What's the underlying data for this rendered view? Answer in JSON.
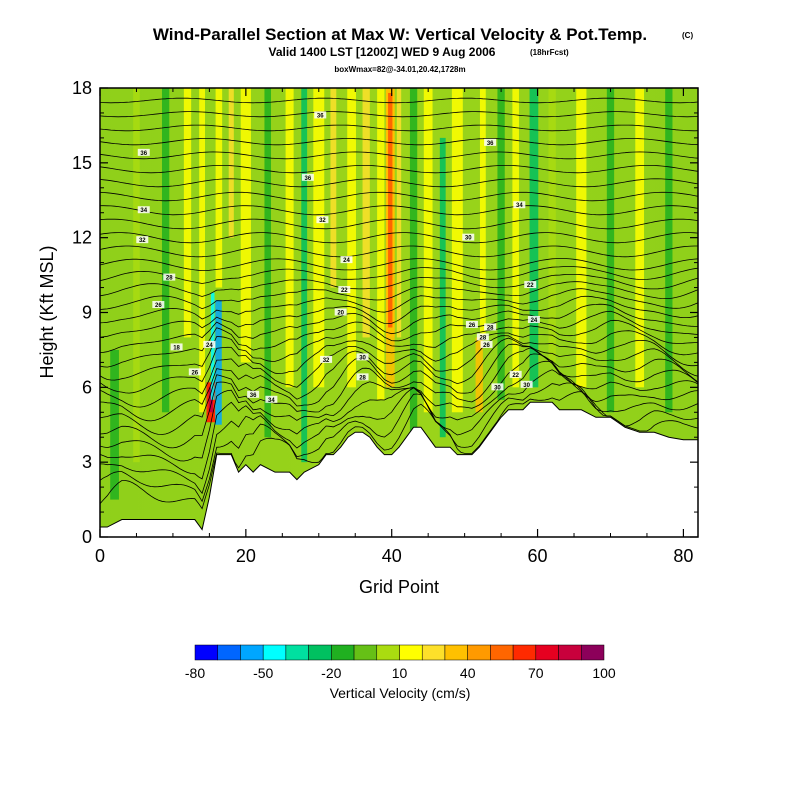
{
  "header": {
    "title": "Wind-Parallel Section at Max W: Vertical Velocity & Pot.Temp.",
    "title_mark": "(C)",
    "subtitle": "Valid 1400 LST [1200Z] WED 9 Aug 2006",
    "subtitle_note": "(18hrFcst)",
    "box_info": "boxWmax=82@-34.01,20.42,1728m"
  },
  "chart_data": {
    "type": "heatmap",
    "xlabel": "Grid Point",
    "ylabel": "Height (Kft MSL)",
    "xlim": [
      0,
      82
    ],
    "ylim": [
      0,
      18
    ],
    "x_ticks": [
      "0",
      "20",
      "40",
      "60",
      "80"
    ],
    "x_tick_values": [
      0,
      20,
      40,
      60,
      80
    ],
    "y_ticks": [
      "0",
      "3",
      "6",
      "9",
      "12",
      "15",
      "18"
    ],
    "y_tick_values": [
      0,
      3,
      6,
      9,
      12,
      15,
      18
    ],
    "terrain": {
      "x": [
        0,
        1,
        3,
        13,
        14,
        15,
        16,
        17,
        18,
        19,
        20,
        21,
        22,
        24,
        26,
        27,
        28,
        30,
        31,
        32,
        33,
        34,
        35,
        36,
        37,
        38,
        39,
        40,
        41,
        42,
        43,
        44,
        45,
        46,
        48,
        49,
        50,
        51,
        52,
        53,
        54,
        55,
        56,
        57,
        58,
        59,
        60,
        62,
        63,
        64,
        66,
        68,
        70,
        71,
        72,
        74,
        76,
        78,
        80,
        82
      ],
      "height_kft": [
        0.4,
        0.4,
        0.7,
        0.7,
        0.3,
        1.6,
        3.3,
        3.3,
        3.3,
        2.6,
        2.9,
        2.6,
        2.9,
        2.6,
        2.6,
        2.3,
        2.6,
        2.9,
        3.3,
        3.3,
        3.6,
        4.0,
        4.2,
        4.2,
        4.0,
        3.6,
        3.3,
        3.3,
        3.6,
        4.0,
        4.4,
        4.4,
        4.0,
        3.6,
        3.6,
        3.3,
        3.3,
        3.3,
        3.6,
        4.0,
        4.4,
        4.8,
        5.1,
        5.1,
        5.1,
        5.4,
        5.4,
        5.4,
        5.1,
        5.1,
        5.1,
        4.8,
        4.8,
        4.6,
        4.4,
        4.2,
        4.2,
        4.0,
        3.9,
        3.9
      ]
    },
    "updraft_cores": [
      {
        "x": 15.2,
        "y_bottom": 4.6,
        "y_top": 6.2,
        "max_w": 82
      },
      {
        "x": 39.8,
        "y_bottom": 8.0,
        "y_top": 18.0,
        "max_w": 50
      }
    ],
    "contour_labels": [
      "30",
      "30",
      "30",
      "30",
      "30",
      "30",
      "30",
      "30",
      "30",
      "30",
      "30",
      "30",
      "30",
      "30",
      "30",
      "30",
      "30",
      "30",
      "30",
      "30"
    ],
    "contour_label_text": [
      "36",
      "36",
      "36",
      "34",
      "32",
      "36",
      "34",
      "32",
      "30",
      "28",
      "26",
      "24",
      "22",
      "20",
      "18",
      "36",
      "34",
      "32",
      "30",
      "28",
      "26",
      "24",
      "22",
      "28",
      "26",
      "24",
      "22",
      "30",
      "30",
      "28",
      "26"
    ],
    "colorbar": {
      "title": "Vertical Velocity (cm/s)",
      "labels": [
        "-80",
        "-50",
        "-20",
        "10",
        "40",
        "70",
        "100"
      ],
      "colors": [
        "#0000ff",
        "#0066ff",
        "#00a6ff",
        "#00ffff",
        "#00e0a0",
        "#00c060",
        "#20b020",
        "#66c016",
        "#aadc10",
        "#ffff00",
        "#fde02a",
        "#ffc000",
        "#ff9a00",
        "#ff6600",
        "#ff2a00",
        "#e60020",
        "#c8003c",
        "#8c005a"
      ]
    }
  }
}
